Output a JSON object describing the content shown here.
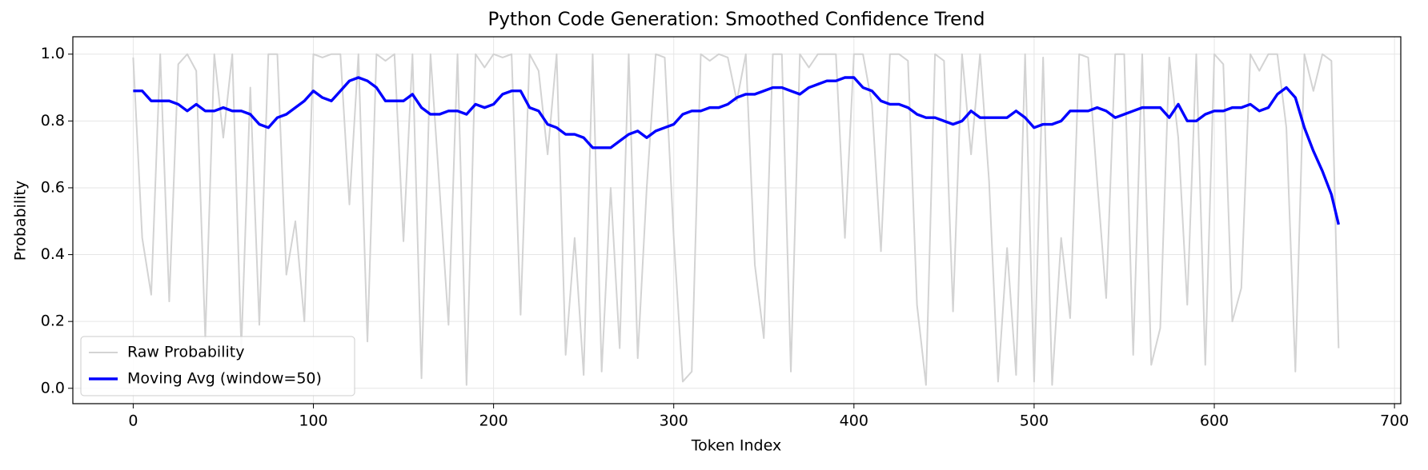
{
  "chart_data": {
    "type": "line",
    "title": "Python Code Generation: Smoothed Confidence Trend",
    "x_label": "Token Index",
    "y_label": "Probability",
    "xlim": [
      -33.5,
      703.5
    ],
    "ylim": [
      -0.046,
      1.052
    ],
    "xticks": [
      0,
      100,
      200,
      300,
      400,
      500,
      600,
      700
    ],
    "yticks": [
      {
        "value": 0,
        "label": "0.0"
      },
      {
        "value": 0.2,
        "label": "0.2"
      },
      {
        "value": 0.4,
        "label": "0.4"
      },
      {
        "value": 0.6,
        "label": "0.6"
      },
      {
        "value": 0.8,
        "label": "0.8"
      },
      {
        "value": 1,
        "label": "1.0"
      }
    ],
    "grid": true,
    "legend": "lower left",
    "x": [
      0,
      5,
      10,
      15,
      20,
      25,
      30,
      35,
      40,
      45,
      50,
      55,
      60,
      65,
      70,
      75,
      80,
      85,
      90,
      95,
      100,
      105,
      110,
      115,
      120,
      125,
      130,
      135,
      140,
      145,
      150,
      155,
      160,
      165,
      170,
      175,
      180,
      185,
      190,
      195,
      200,
      205,
      210,
      215,
      220,
      225,
      230,
      235,
      240,
      245,
      250,
      255,
      260,
      265,
      270,
      275,
      280,
      285,
      290,
      295,
      300,
      305,
      310,
      315,
      320,
      325,
      330,
      335,
      340,
      345,
      350,
      355,
      360,
      365,
      370,
      375,
      380,
      385,
      390,
      395,
      400,
      405,
      410,
      415,
      420,
      425,
      430,
      435,
      440,
      445,
      450,
      455,
      460,
      465,
      470,
      475,
      480,
      485,
      490,
      495,
      500,
      505,
      510,
      515,
      520,
      525,
      530,
      535,
      540,
      545,
      550,
      555,
      560,
      565,
      570,
      575,
      580,
      585,
      590,
      595,
      600,
      605,
      610,
      615,
      620,
      625,
      630,
      635,
      640,
      645,
      650,
      655,
      660,
      665,
      669
    ],
    "series": [
      {
        "name": "Raw Probability",
        "color": "#d3d3d3",
        "values": [
          0.99,
          0.45,
          0.28,
          1,
          0.26,
          0.97,
          1,
          0.95,
          0.15,
          1,
          0.75,
          1,
          0.12,
          0.9,
          0.19,
          1,
          1,
          0.34,
          0.5,
          0.2,
          1,
          0.99,
          1,
          1,
          0.55,
          1,
          0.14,
          1,
          0.98,
          1,
          0.44,
          1,
          0.03,
          1,
          0.6,
          0.19,
          1,
          0.01,
          1,
          0.96,
          1,
          0.99,
          1,
          0.22,
          1,
          0.95,
          0.7,
          1,
          0.1,
          0.45,
          0.04,
          1,
          0.05,
          0.6,
          0.12,
          1,
          0.09,
          0.6,
          1,
          0.99,
          0.45,
          0.02,
          0.05,
          1,
          0.98,
          1,
          0.99,
          0.86,
          1,
          0.37,
          0.15,
          1,
          1,
          0.05,
          1,
          0.96,
          1,
          1,
          1,
          0.45,
          1,
          1,
          0.85,
          0.41,
          1,
          1,
          0.98,
          0.25,
          0.01,
          1,
          0.98,
          0.23,
          1,
          0.7,
          1,
          0.62,
          0.02,
          0.42,
          0.04,
          1,
          0.02,
          0.99,
          0.01,
          0.45,
          0.21,
          1,
          0.99,
          0.62,
          0.27,
          1,
          1,
          0.1,
          1,
          0.07,
          0.18,
          0.99,
          0.75,
          0.25,
          1,
          0.07,
          1,
          0.97,
          0.2,
          0.3,
          1,
          0.95,
          1,
          1,
          0.78,
          0.05,
          1,
          0.89,
          1,
          0.98,
          0.12
        ]
      },
      {
        "name": "Moving Avg (window=50)",
        "color": "#0000ff",
        "values": [
          0.89,
          0.89,
          0.86,
          0.86,
          0.86,
          0.85,
          0.83,
          0.85,
          0.83,
          0.83,
          0.84,
          0.83,
          0.83,
          0.82,
          0.79,
          0.78,
          0.81,
          0.82,
          0.84,
          0.86,
          0.89,
          0.87,
          0.86,
          0.89,
          0.92,
          0.93,
          0.92,
          0.9,
          0.86,
          0.86,
          0.86,
          0.88,
          0.84,
          0.82,
          0.82,
          0.83,
          0.83,
          0.82,
          0.85,
          0.84,
          0.85,
          0.88,
          0.89,
          0.89,
          0.84,
          0.83,
          0.79,
          0.78,
          0.76,
          0.76,
          0.75,
          0.72,
          0.72,
          0.72,
          0.74,
          0.76,
          0.77,
          0.75,
          0.77,
          0.78,
          0.79,
          0.82,
          0.83,
          0.83,
          0.84,
          0.84,
          0.85,
          0.87,
          0.88,
          0.88,
          0.89,
          0.9,
          0.9,
          0.89,
          0.88,
          0.9,
          0.91,
          0.92,
          0.92,
          0.93,
          0.93,
          0.9,
          0.89,
          0.86,
          0.85,
          0.85,
          0.84,
          0.82,
          0.81,
          0.81,
          0.8,
          0.79,
          0.8,
          0.83,
          0.81,
          0.81,
          0.81,
          0.81,
          0.83,
          0.81,
          0.78,
          0.79,
          0.79,
          0.8,
          0.83,
          0.83,
          0.83,
          0.84,
          0.83,
          0.81,
          0.82,
          0.83,
          0.84,
          0.84,
          0.84,
          0.81,
          0.85,
          0.8,
          0.8,
          0.82,
          0.83,
          0.83,
          0.84,
          0.84,
          0.85,
          0.83,
          0.84,
          0.88,
          0.9,
          0.87,
          0.78,
          0.71,
          0.65,
          0.58,
          0.49
        ]
      }
    ]
  }
}
